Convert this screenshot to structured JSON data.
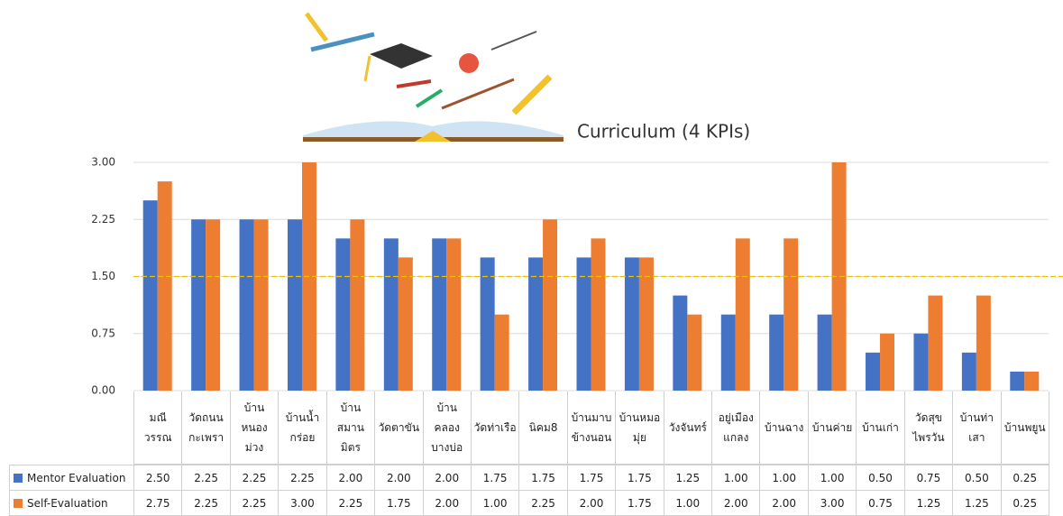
{
  "chart_data": {
    "type": "bar",
    "title": "Curriculum (4 KPIs)",
    "categories": [
      "มณีวรรณ",
      "วัดถนนกะเพรา",
      "บ้านหนองม่วง",
      "บ้านน้ำกร่อย",
      "บ้านสมานมิตร",
      "วัดตาขัน",
      "บ้านคลองบางบ่อ",
      "วัดท่าเรือ",
      "นิคม8",
      "บ้านมาบข้างนอน",
      "บ้านหมอมุ่ย",
      "วังจันทร์",
      "อยู่เมืองแกลง",
      "บ้านฉาง",
      "บ้านค่าย",
      "บ้านเก่า",
      "วัดสุขไพรวัน",
      "บ้านท่าเสา",
      "บ้านพยูน"
    ],
    "series": [
      {
        "name": "Mentor Evaluation",
        "color": "#4472c4",
        "values": [
          2.5,
          2.25,
          2.25,
          2.25,
          2,
          2,
          2,
          1.75,
          1.75,
          1.75,
          1.75,
          1.25,
          1,
          1,
          1,
          0.5,
          0.75,
          0.5,
          0.25
        ],
        "value_labels": [
          "2.50",
          "2.25",
          "2.25",
          "2.25",
          "2.00",
          "2.00",
          "2.00",
          "1.75",
          "1.75",
          "1.75",
          "1.75",
          "1.25",
          "1.00",
          "1.00",
          "1.00",
          "0.50",
          "0.75",
          "0.50",
          "0.25"
        ]
      },
      {
        "name": "Self-Evaluation",
        "color": "#ed7d31",
        "values": [
          2.75,
          2.25,
          2.25,
          3,
          2.25,
          1.75,
          2,
          1,
          2.25,
          2,
          1.75,
          1,
          2,
          2,
          3,
          0.75,
          1.25,
          1.25,
          0.25
        ],
        "value_labels": [
          "2.75",
          "2.25",
          "2.25",
          "3.00",
          "2.25",
          "1.75",
          "2.00",
          "1.00",
          "2.25",
          "2.00",
          "1.75",
          "1.00",
          "2.00",
          "2.00",
          "3.00",
          "0.75",
          "1.25",
          "1.25",
          "0.25"
        ]
      }
    ],
    "ylim": [
      0,
      3
    ],
    "yticks": [
      {
        "value": 0,
        "label": "0.00"
      },
      {
        "value": 0.75,
        "label": "0.75"
      },
      {
        "value": 1.5,
        "label": "1.50"
      },
      {
        "value": 2.25,
        "label": "2.25"
      },
      {
        "value": 3,
        "label": "3.00"
      }
    ],
    "grid": true,
    "reference_line": {
      "value": 1.5,
      "color": "#f0c000"
    }
  }
}
